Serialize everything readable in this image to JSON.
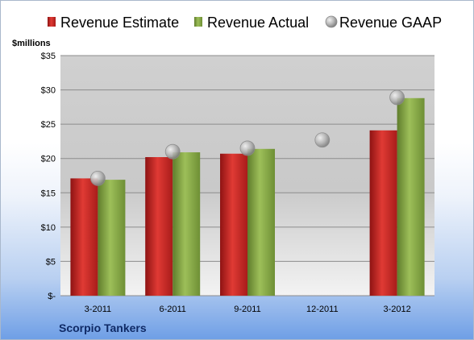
{
  "chart_data": {
    "type": "bar",
    "title": "",
    "unit_label": "$millions",
    "xlabel": "",
    "ylabel": "",
    "categories": [
      "3-2011",
      "6-2011",
      "9-2011",
      "12-2011",
      "3-2012"
    ],
    "series": [
      {
        "name": "Revenue Estimate",
        "kind": "bar",
        "color": "#d42a26",
        "values": [
          17.1,
          20.2,
          20.7,
          null,
          24.1
        ]
      },
      {
        "name": "Revenue Actual",
        "kind": "bar",
        "color": "#8fb04c",
        "values": [
          16.9,
          20.9,
          21.4,
          null,
          28.8
        ]
      },
      {
        "name": "Revenue GAAP",
        "kind": "marker",
        "color": "#b0b0b0",
        "values": [
          17.1,
          21.0,
          21.5,
          22.7,
          28.9
        ]
      }
    ],
    "ylim": [
      0,
      35
    ],
    "yticks": [
      0,
      5,
      10,
      15,
      20,
      25,
      30,
      35
    ],
    "ytick_labels": [
      "$-",
      "$5",
      "$10",
      "$15",
      "$20",
      "$25",
      "$30",
      "$35"
    ],
    "grid": true,
    "legend_position": "top"
  },
  "footer": {
    "company": "Scorpio Tankers"
  }
}
